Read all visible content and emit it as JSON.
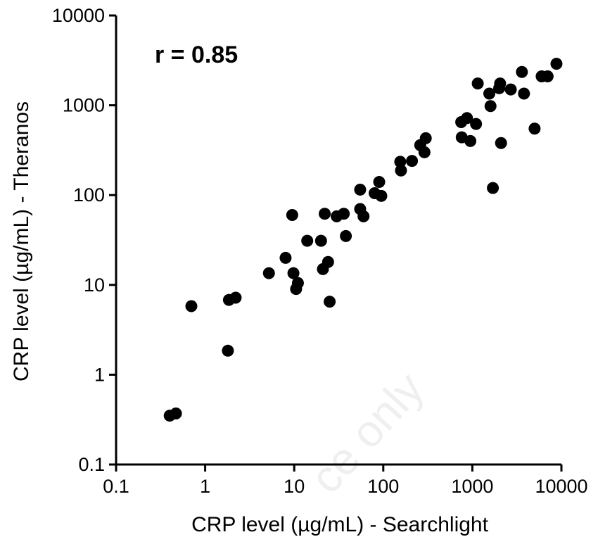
{
  "chart_data": {
    "type": "scatter",
    "title": "",
    "xlabel": "CRP level (µg/mL) - Searchlight",
    "ylabel": "CRP level (µg/mL) - Theranos",
    "xscale": "log",
    "yscale": "log",
    "xlim": [
      0.1,
      10000
    ],
    "ylim": [
      0.1,
      10000
    ],
    "xticks": [
      "0.1",
      "1",
      "10",
      "100",
      "1000",
      "10000"
    ],
    "yticks": [
      "0.1",
      "1",
      "10",
      "100",
      "1000",
      "10000"
    ],
    "annotation": "r = 0.85",
    "watermark": "ce only",
    "grid": false,
    "legend": "none",
    "point_color": "#000000",
    "points": [
      {
        "x": 0.4,
        "y": 0.35
      },
      {
        "x": 0.47,
        "y": 0.37
      },
      {
        "x": 0.7,
        "y": 5.8
      },
      {
        "x": 1.8,
        "y": 1.85
      },
      {
        "x": 1.85,
        "y": 6.8
      },
      {
        "x": 2.2,
        "y": 7.2
      },
      {
        "x": 5.2,
        "y": 13.5
      },
      {
        "x": 8.0,
        "y": 20.0
      },
      {
        "x": 9.5,
        "y": 60
      },
      {
        "x": 9.8,
        "y": 13.5
      },
      {
        "x": 10.5,
        "y": 9.0
      },
      {
        "x": 11.0,
        "y": 10.5
      },
      {
        "x": 14.0,
        "y": 31
      },
      {
        "x": 20.0,
        "y": 31
      },
      {
        "x": 21.0,
        "y": 15
      },
      {
        "x": 22.0,
        "y": 62
      },
      {
        "x": 24.0,
        "y": 18
      },
      {
        "x": 25.0,
        "y": 6.5
      },
      {
        "x": 30.0,
        "y": 58
      },
      {
        "x": 36.0,
        "y": 62
      },
      {
        "x": 38.0,
        "y": 35
      },
      {
        "x": 55.0,
        "y": 115
      },
      {
        "x": 55.0,
        "y": 70
      },
      {
        "x": 60.0,
        "y": 58
      },
      {
        "x": 80.0,
        "y": 105
      },
      {
        "x": 90.0,
        "y": 140
      },
      {
        "x": 95.0,
        "y": 98
      },
      {
        "x": 155.0,
        "y": 235
      },
      {
        "x": 158.0,
        "y": 188
      },
      {
        "x": 210.0,
        "y": 240
      },
      {
        "x": 260.0,
        "y": 360
      },
      {
        "x": 290.0,
        "y": 300
      },
      {
        "x": 300.0,
        "y": 430
      },
      {
        "x": 750.0,
        "y": 650
      },
      {
        "x": 760.0,
        "y": 440
      },
      {
        "x": 870.0,
        "y": 720
      },
      {
        "x": 950.0,
        "y": 400
      },
      {
        "x": 1100.0,
        "y": 620
      },
      {
        "x": 1150.0,
        "y": 1750
      },
      {
        "x": 1550.0,
        "y": 1350
      },
      {
        "x": 1600.0,
        "y": 980
      },
      {
        "x": 1700.0,
        "y": 120
      },
      {
        "x": 2000.0,
        "y": 1550
      },
      {
        "x": 2050.0,
        "y": 1750
      },
      {
        "x": 2100.0,
        "y": 380
      },
      {
        "x": 2700.0,
        "y": 1500
      },
      {
        "x": 3600.0,
        "y": 2350
      },
      {
        "x": 3800.0,
        "y": 1350
      },
      {
        "x": 5000.0,
        "y": 550
      },
      {
        "x": 6000.0,
        "y": 2100
      },
      {
        "x": 7000.0,
        "y": 2100
      },
      {
        "x": 8800.0,
        "y": 2900
      }
    ]
  }
}
